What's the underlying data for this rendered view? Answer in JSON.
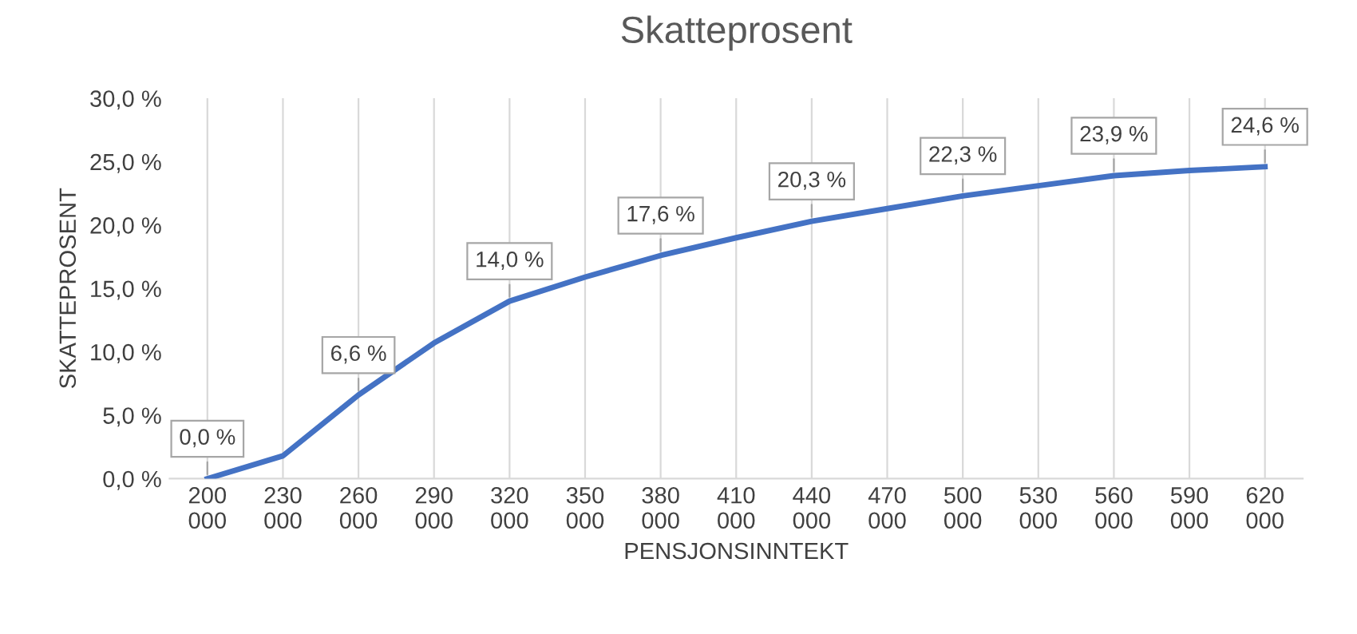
{
  "chart_data": {
    "type": "line",
    "title": "Skatteprosent",
    "xlabel": "PENSJONSINNTEKT",
    "ylabel": "SKATTEPROSENT",
    "categories": [
      "200 000",
      "230 000",
      "260 000",
      "290 000",
      "320 000",
      "350 000",
      "380 000",
      "410 000",
      "440 000",
      "470 000",
      "500 000",
      "530 000",
      "560 000",
      "590 000",
      "620 000"
    ],
    "series": [
      {
        "color": "#4472c4",
        "values": [
          0.0,
          1.8,
          6.6,
          10.7,
          14.0,
          15.9,
          17.6,
          19.0,
          20.3,
          21.3,
          22.3,
          23.1,
          23.9,
          24.3,
          24.6
        ],
        "value_labels": [
          "0,0 %",
          null,
          "6,6 %",
          null,
          "14,0 %",
          null,
          "17,6 %",
          null,
          "20,3 %",
          null,
          "22,3 %",
          null,
          "23,9 %",
          null,
          "24,6 %"
        ]
      }
    ],
    "ylim": [
      0,
      30
    ],
    "yticks": [
      {
        "value": 0,
        "label": "0,0 %"
      },
      {
        "value": 5,
        "label": "5,0 %"
      },
      {
        "value": 10,
        "label": "10,0 %"
      },
      {
        "value": 15,
        "label": "15,0 %"
      },
      {
        "value": 20,
        "label": "20,0 %"
      },
      {
        "value": 25,
        "label": "25,0 %"
      },
      {
        "value": 30,
        "label": "30,0 %"
      }
    ],
    "grid": "x",
    "marker": "none",
    "line_style": "solid",
    "legend": false
  }
}
